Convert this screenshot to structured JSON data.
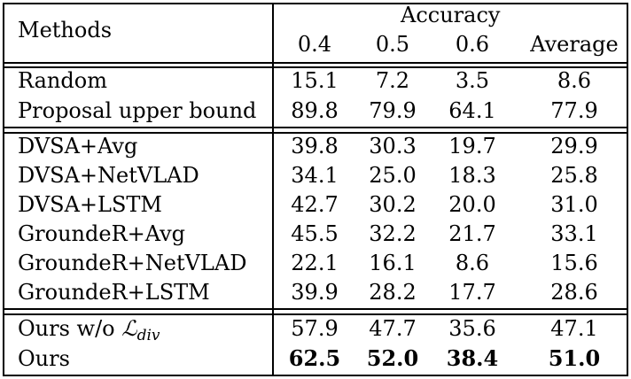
{
  "table": {
    "header": {
      "methods": "Methods",
      "group": "Accuracy",
      "columns": [
        "0.4",
        "0.5",
        "0.6",
        "Average"
      ]
    },
    "sections": [
      {
        "rows": [
          {
            "method": "Random",
            "values": [
              "15.1",
              "7.2",
              "3.5",
              "8.6"
            ]
          },
          {
            "method": "Proposal upper bound",
            "values": [
              "89.8",
              "79.9",
              "64.1",
              "77.9"
            ]
          }
        ]
      },
      {
        "rows": [
          {
            "method": "DVSA+Avg",
            "values": [
              "39.8",
              "30.3",
              "19.7",
              "29.9"
            ]
          },
          {
            "method": "DVSA+NetVLAD",
            "values": [
              "34.1",
              "25.0",
              "18.3",
              "25.8"
            ]
          },
          {
            "method": "DVSA+LSTM",
            "values": [
              "42.7",
              "30.2",
              "20.0",
              "31.0"
            ]
          },
          {
            "method": "GroundeR+Avg",
            "values": [
              "45.5",
              "32.2",
              "21.7",
              "33.1"
            ]
          },
          {
            "method": "GroundeR+NetVLAD",
            "values": [
              "22.1",
              "16.1",
              "8.6",
              "15.6"
            ]
          },
          {
            "method": "GroundeR+LSTM",
            "values": [
              "39.9",
              "28.2",
              "17.7",
              "28.6"
            ]
          }
        ]
      },
      {
        "rows": [
          {
            "method_prefix": "Ours w/o ",
            "method_symbol": "ℒ",
            "method_subscript": "div",
            "values": [
              "57.9",
              "47.7",
              "35.6",
              "47.1"
            ]
          },
          {
            "method": "Ours",
            "values": [
              "62.5",
              "52.0",
              "38.4",
              "51.0"
            ],
            "bold_values": true
          }
        ]
      }
    ]
  }
}
